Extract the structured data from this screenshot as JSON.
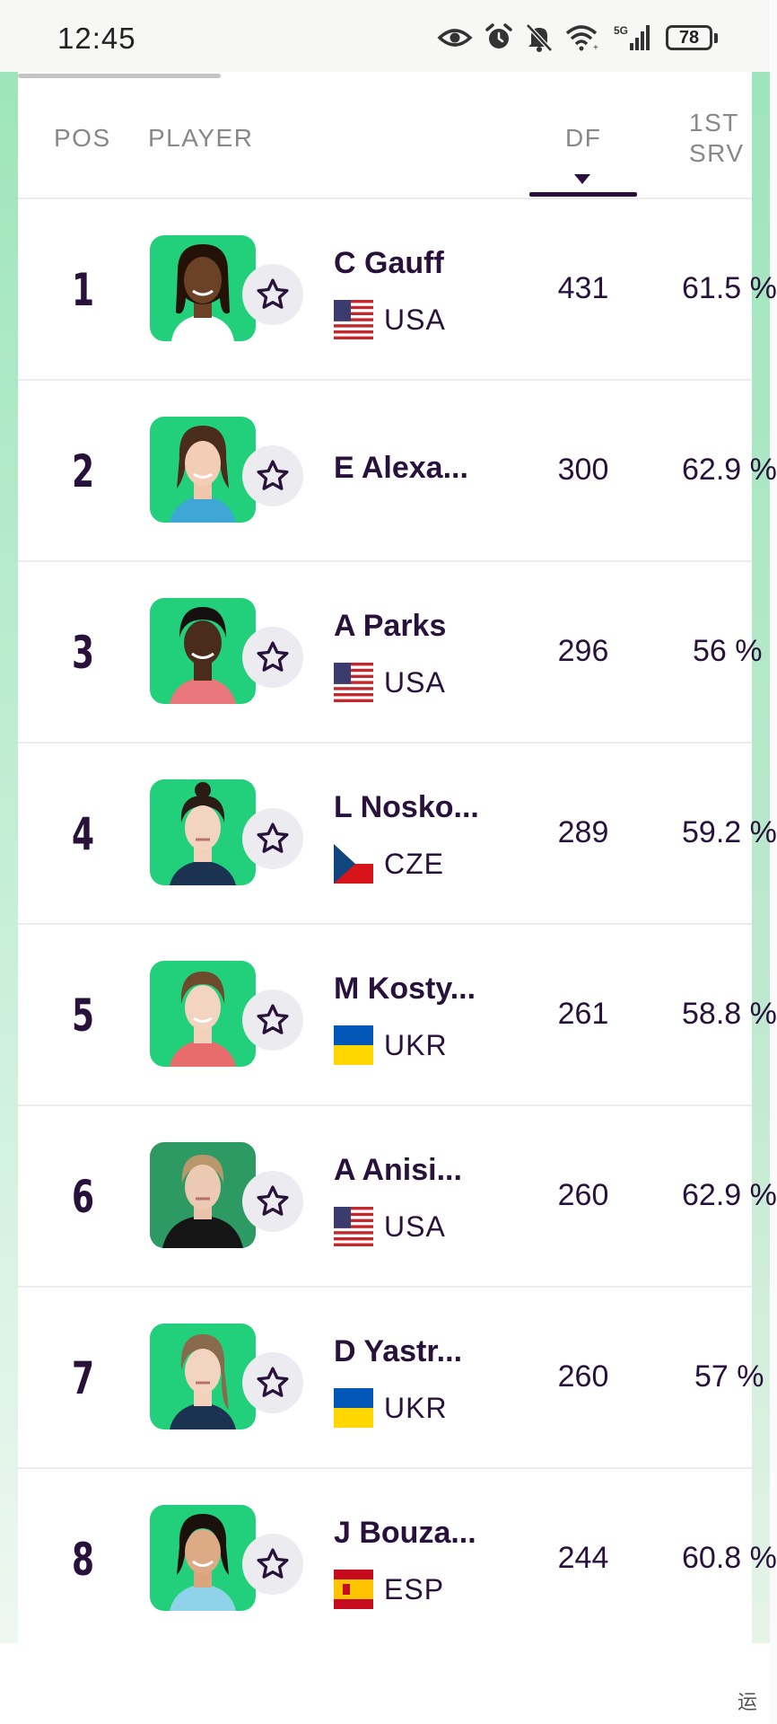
{
  "status_bar": {
    "time": "12:45",
    "network": "5G",
    "battery": "78"
  },
  "table": {
    "headers": {
      "pos": "POS",
      "player": "PLAYER",
      "df": "DF",
      "srv_line1": "1ST",
      "srv_line2": "SRV"
    },
    "rows": [
      {
        "pos": "1",
        "name": "C Gauff",
        "country": "USA",
        "df": "431",
        "srv": "61.5 %"
      },
      {
        "pos": "2",
        "name": "E Alexa...",
        "country": "",
        "df": "300",
        "srv": "62.9 %"
      },
      {
        "pos": "3",
        "name": "A Parks",
        "country": "USA",
        "df": "296",
        "srv": "56 %"
      },
      {
        "pos": "4",
        "name": "L Nosko...",
        "country": "CZE",
        "df": "289",
        "srv": "59.2 %"
      },
      {
        "pos": "5",
        "name": "M Kosty...",
        "country": "UKR",
        "df": "261",
        "srv": "58.8 %"
      },
      {
        "pos": "6",
        "name": "A Anisi...",
        "country": "USA",
        "df": "260",
        "srv": "62.9 %"
      },
      {
        "pos": "7",
        "name": "D Yastr...",
        "country": "UKR",
        "df": "260",
        "srv": "57 %"
      },
      {
        "pos": "8",
        "name": "J Bouza...",
        "country": "ESP",
        "df": "244",
        "srv": "60.8 %"
      }
    ]
  },
  "watermark": "运"
}
